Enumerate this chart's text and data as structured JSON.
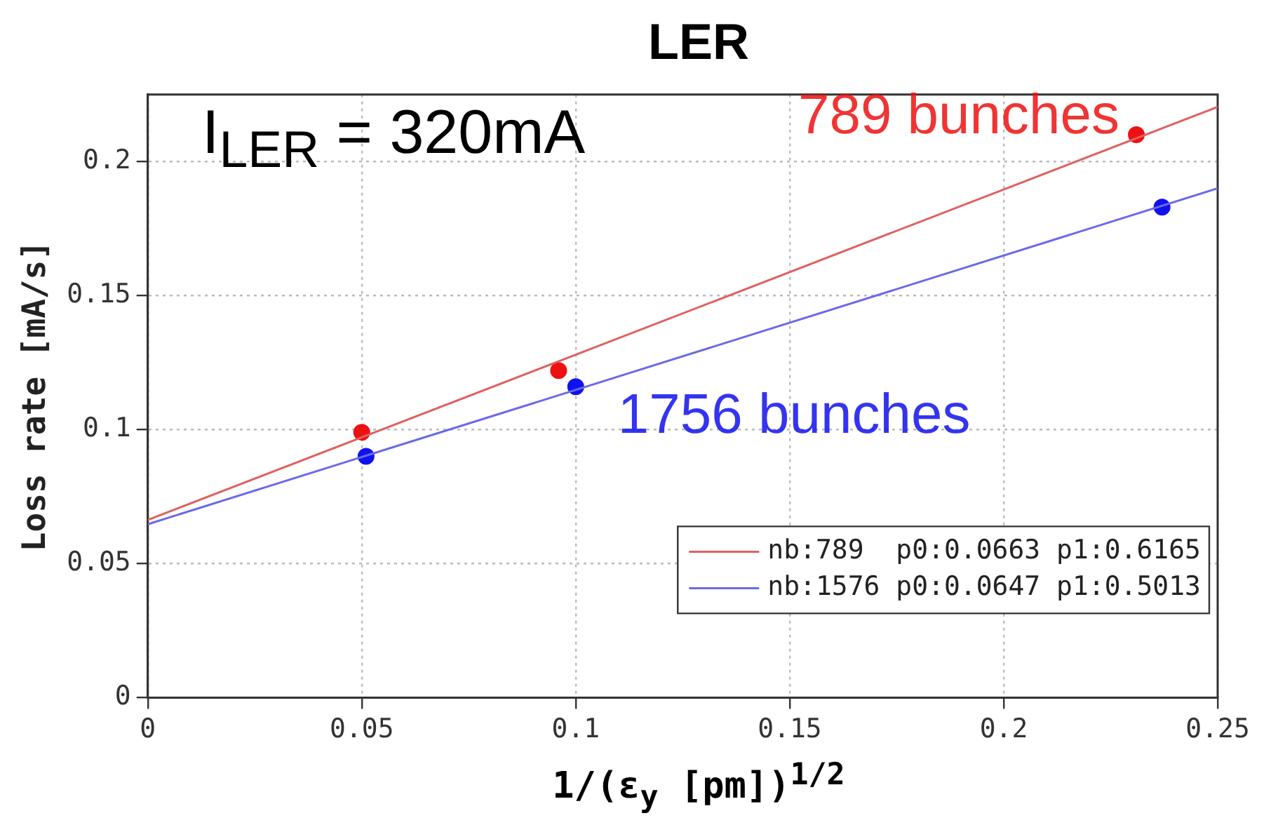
{
  "chart_data": {
    "type": "scatter",
    "title": "LER",
    "xlabel": "1/(ε$_{y}$ [pm])$^{1/2}$",
    "ylabel": "Loss rate [mA/s]",
    "annotations": [
      "I$_{LER}$ = 320mA"
    ],
    "series": [
      {
        "type": "line",
        "name": "nb:789  p0:0.0663 p1:0.6165",
        "color": "#e06060",
        "marker": "none",
        "x": [
          0,
          0.25
        ],
        "values": [
          0.0663,
          0.2204
        ]
      },
      {
        "type": "line",
        "name": "nb:1576 p0:0.0647 p1:0.5013",
        "color": "#6a6ae8",
        "marker": "none",
        "x": [
          0,
          0.25
        ],
        "values": [
          0.0647,
          0.19
        ]
      },
      {
        "type": "scatter",
        "name": "789 bunches",
        "color": "#ee1111",
        "marker": "circle",
        "x": [
          0.05,
          0.096,
          0.231
        ],
        "values": [
          0.099,
          0.122,
          0.21
        ]
      },
      {
        "type": "scatter",
        "name": "1756 bunches",
        "color": "#1111ee",
        "marker": "circle",
        "x": [
          0.051,
          0.1,
          0.237
        ],
        "values": [
          0.09,
          0.116,
          0.183
        ]
      }
    ],
    "xlim": [
      0,
      0.25
    ],
    "xticks": [
      0,
      0.05,
      0.1,
      0.15,
      0.2,
      0.25
    ],
    "ylim": [
      0,
      0.225
    ],
    "yticks": [
      0,
      0.05,
      0.1,
      0.15,
      0.2
    ],
    "grid": true,
    "legend": "bottom right"
  }
}
